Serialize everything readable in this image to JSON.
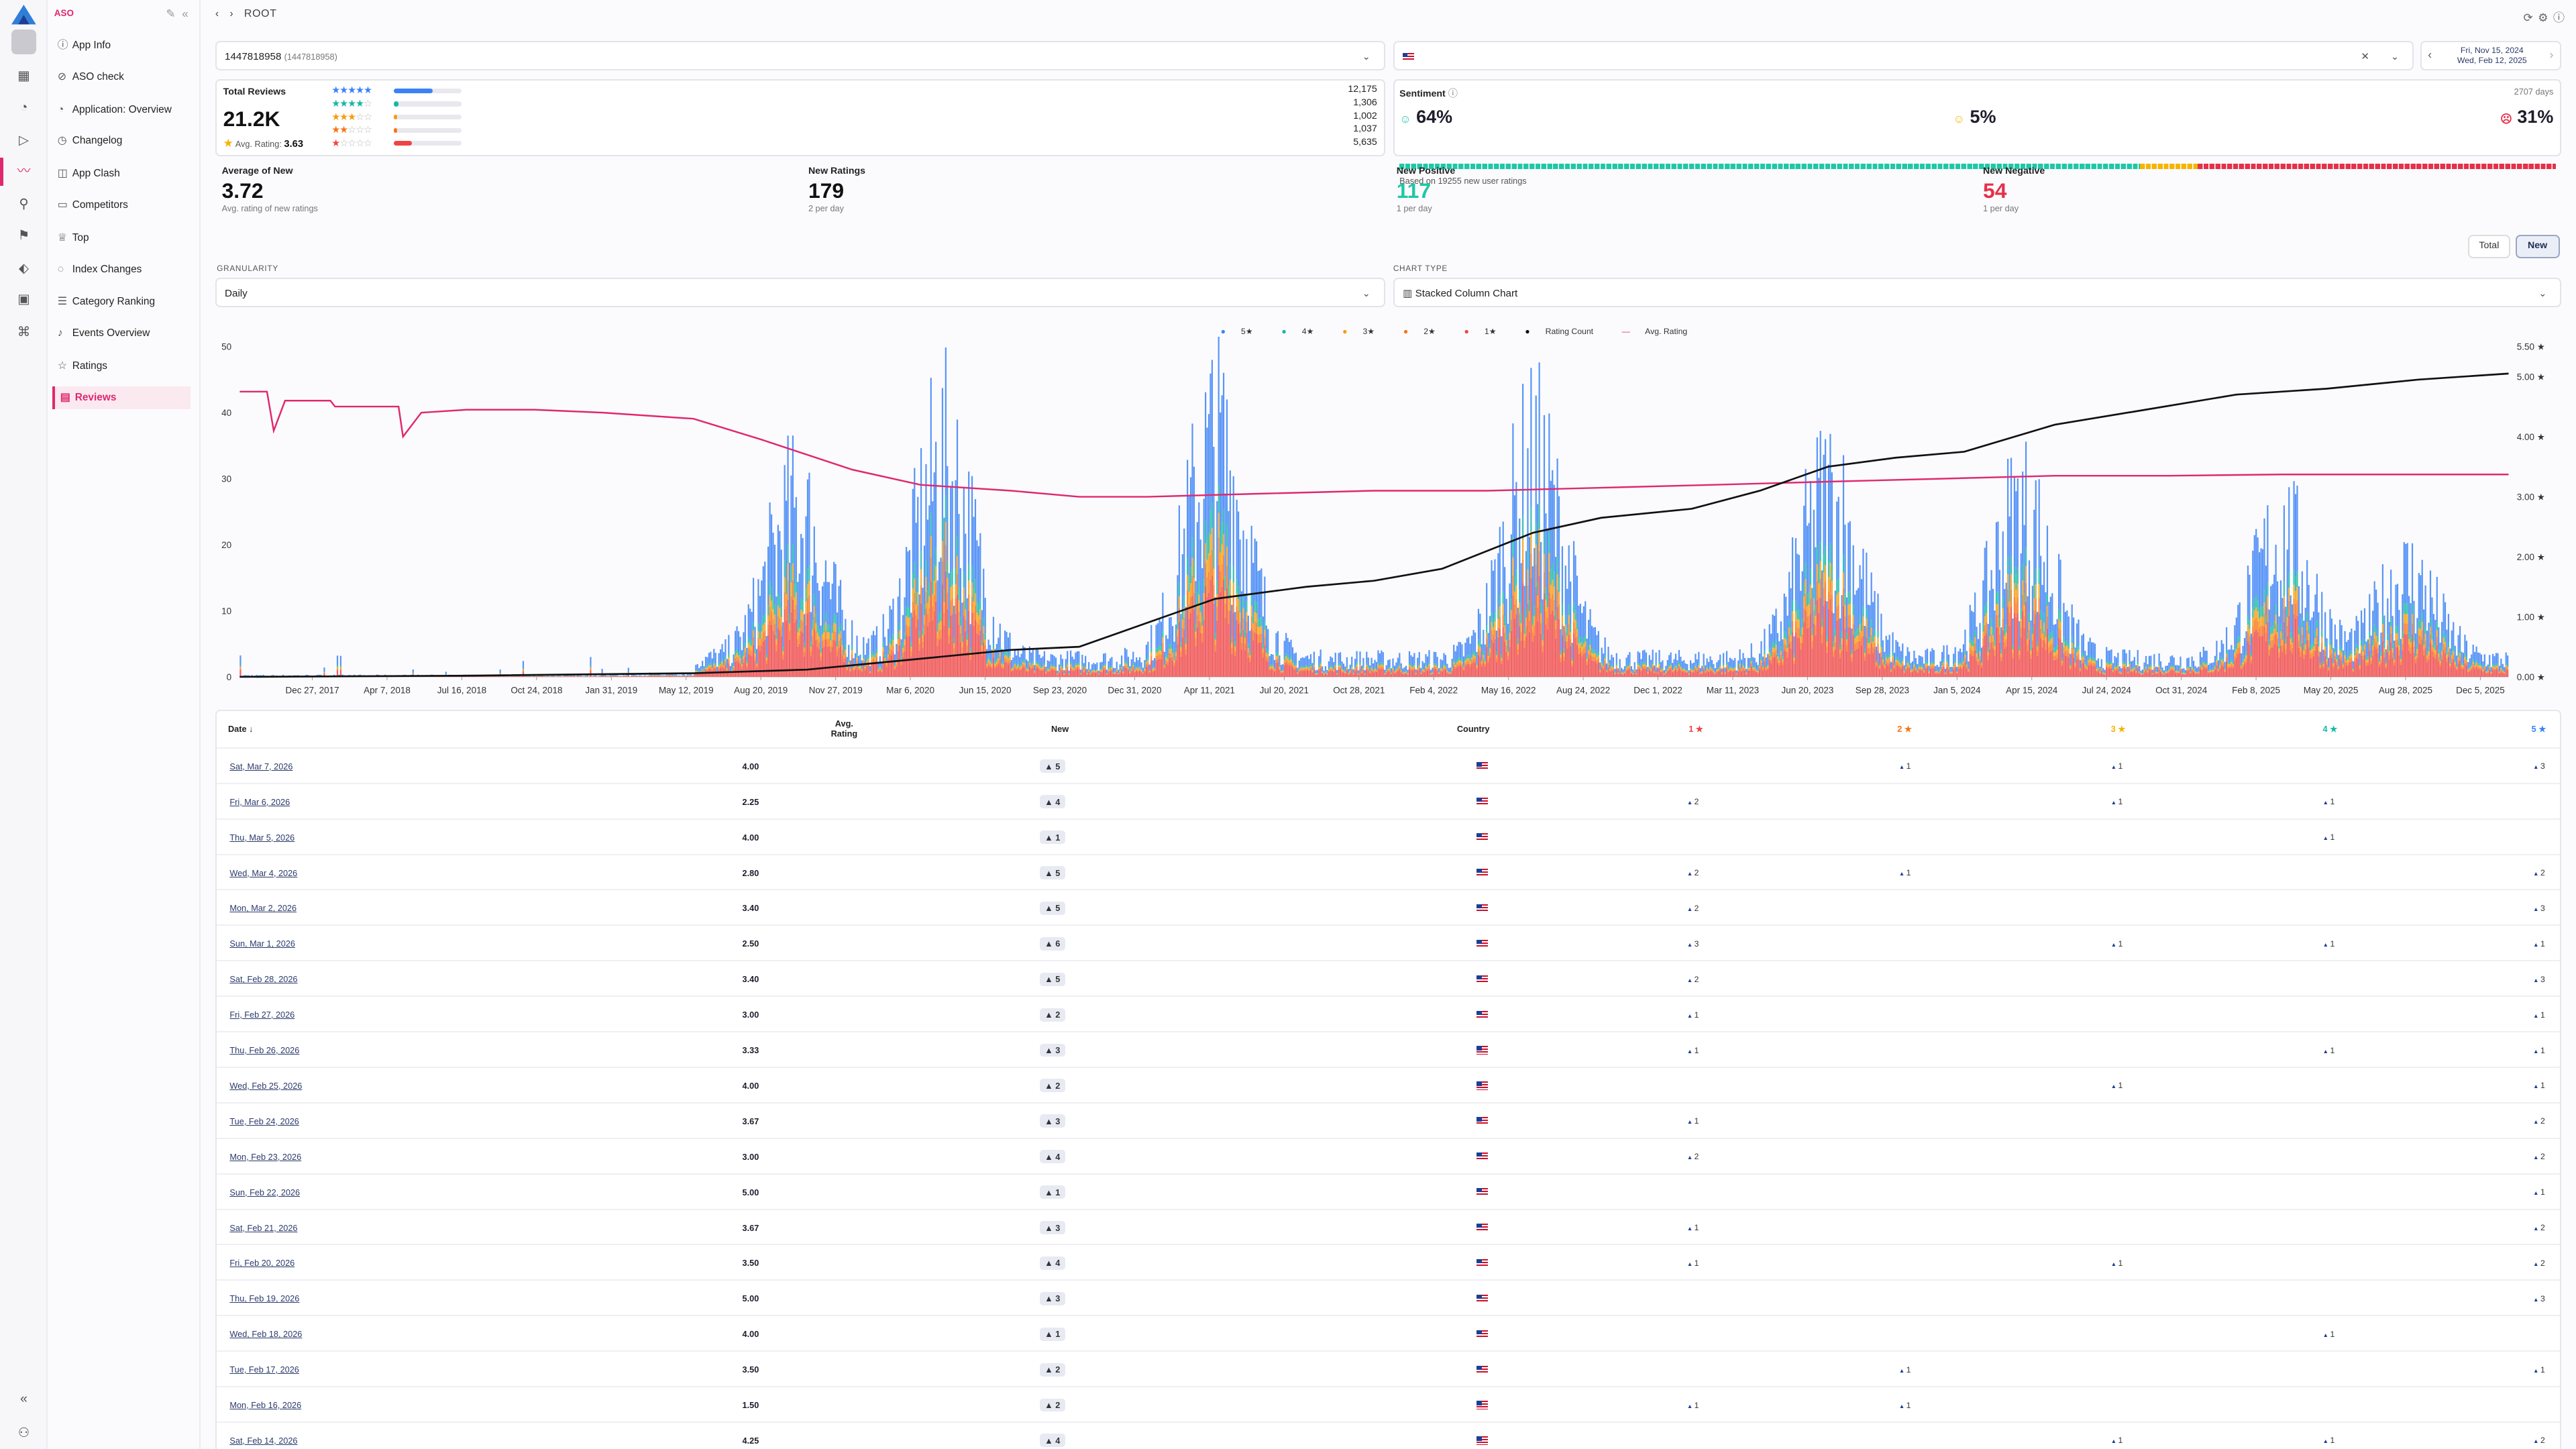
{
  "app": {
    "brand": "ASO",
    "breadcrumb": "ROOT"
  },
  "sidebar": {
    "items": [
      {
        "label": "App Info",
        "icon": "info-icon"
      },
      {
        "label": "ASO check",
        "icon": "check-circle-icon"
      },
      {
        "label": "Application: Overview",
        "icon": "overview-icon"
      },
      {
        "label": "Changelog",
        "icon": "history-icon"
      },
      {
        "label": "App Clash",
        "icon": "clash-icon"
      },
      {
        "label": "Competitors",
        "icon": "competitors-icon"
      },
      {
        "label": "Top",
        "icon": "trophy-icon"
      },
      {
        "label": "Index Changes",
        "icon": "index-icon"
      },
      {
        "label": "Category Ranking",
        "icon": "category-icon"
      },
      {
        "label": "Events Overview",
        "icon": "events-icon"
      },
      {
        "label": "Ratings",
        "icon": "star-icon"
      },
      {
        "label": "Reviews",
        "icon": "reviews-icon"
      }
    ],
    "active": "Reviews"
  },
  "filters": {
    "app_id": "1447818958",
    "app_id_sub": "(1447818958)",
    "date_from": "Fri, Nov 15, 2024",
    "date_to": "Wed, Feb 12, 2025"
  },
  "total_reviews": {
    "label": "Total Reviews",
    "value": "21.2K",
    "avg_label": "Avg. Rating:",
    "avg_value": "3.63",
    "counts": [
      "12,175",
      "1,306",
      "1,002",
      "1,037",
      "5,635"
    ],
    "fractions": [
      0.575,
      0.062,
      0.047,
      0.049,
      0.266
    ],
    "bar_colors": [
      "#3b82f6",
      "#14b8a6",
      "#f59e0b",
      "#f97316",
      "#ef4444"
    ]
  },
  "sentiment": {
    "label": "Sentiment",
    "days": "2707 days",
    "positive": "64%",
    "neutral": "5%",
    "negative": "31%",
    "based_on": "Based on 19255 new user ratings"
  },
  "metrics": [
    {
      "label": "Average of New",
      "value": "3.72",
      "sub": "Avg. rating of new ratings",
      "color": "#111111"
    },
    {
      "label": "New Ratings",
      "value": "179",
      "sub": "2 per day",
      "color": "#111111"
    },
    {
      "label": "New Positive",
      "value": "117",
      "sub": "1 per day",
      "color": "#1fc7a6"
    },
    {
      "label": "New Negative",
      "value": "54",
      "sub": "1 per day",
      "color": "#e5304a"
    }
  ],
  "toggle": {
    "total": "Total",
    "new": "New"
  },
  "controls": {
    "granularity_label": "GRANULARITY",
    "granularity": "Daily",
    "charttype_label": "CHART TYPE",
    "charttype": "Stacked Column Chart"
  },
  "legend": [
    "5★",
    "4★",
    "3★",
    "2★",
    "1★",
    "Rating Count",
    "Avg. Rating"
  ],
  "chart_data": {
    "type": "bar",
    "x_ticks": [
      "Dec 27, 2017",
      "Apr 7, 2018",
      "Jul 16, 2018",
      "Oct 24, 2018",
      "Jan 31, 2019",
      "May 12, 2019",
      "Aug 20, 2019",
      "Nov 27, 2019",
      "Mar 6, 2020",
      "Jun 15, 2020",
      "Sep 23, 2020",
      "Dec 31, 2020",
      "Apr 11, 2021",
      "Jul 20, 2021",
      "Oct 28, 2021",
      "Feb 4, 2022",
      "May 16, 2022",
      "Aug 24, 2022",
      "Dec 1, 2022",
      "Mar 11, 2023",
      "Jun 20, 2023",
      "Sep 28, 2023",
      "Jan 5, 2024",
      "Apr 15, 2024",
      "Jul 24, 2024",
      "Oct 31, 2024",
      "Feb 8, 2025",
      "May 20, 2025",
      "Aug 28, 2025",
      "Dec 5, 2025"
    ],
    "y_left_ticks": [
      "0",
      "10",
      "20",
      "30",
      "40",
      "50"
    ],
    "y_right_ticks": [
      "0.00 ★",
      "1.00 ★",
      "2.00 ★",
      "3.00 ★",
      "4.00 ★",
      "5.00 ★",
      "5.50 ★"
    ],
    "ylim_left": [
      0,
      50
    ],
    "ylim_right": [
      0,
      5.5
    ],
    "series": [
      {
        "name": "5★",
        "color": "#3b82f6"
      },
      {
        "name": "4★",
        "color": "#14b8a6"
      },
      {
        "name": "3★",
        "color": "#f59e0b"
      },
      {
        "name": "2★",
        "color": "#f97316"
      },
      {
        "name": "1★",
        "color": "#ef4444"
      }
    ],
    "avg_rating_line": {
      "name": "Avg. Rating",
      "color": "#e0286f",
      "points": [
        [
          0,
          4.75
        ],
        [
          0.012,
          4.75
        ],
        [
          0.015,
          4.1
        ],
        [
          0.02,
          4.6
        ],
        [
          0.04,
          4.6
        ],
        [
          0.042,
          4.5
        ],
        [
          0.07,
          4.5
        ],
        [
          0.072,
          4.0
        ],
        [
          0.08,
          4.4
        ],
        [
          0.1,
          4.45
        ],
        [
          0.13,
          4.45
        ],
        [
          0.16,
          4.4
        ],
        [
          0.2,
          4.3
        ],
        [
          0.23,
          3.95
        ],
        [
          0.27,
          3.45
        ],
        [
          0.3,
          3.2
        ],
        [
          0.34,
          3.1
        ],
        [
          0.37,
          3.0
        ],
        [
          0.4,
          3.0
        ],
        [
          0.45,
          3.05
        ],
        [
          0.5,
          3.1
        ],
        [
          0.55,
          3.1
        ],
        [
          0.6,
          3.15
        ],
        [
          0.65,
          3.2
        ],
        [
          0.7,
          3.25
        ],
        [
          0.75,
          3.3
        ],
        [
          0.8,
          3.35
        ],
        [
          0.85,
          3.35
        ],
        [
          0.9,
          3.37
        ],
        [
          0.95,
          3.37
        ],
        [
          1.0,
          3.37
        ]
      ]
    },
    "rating_count_line": {
      "name": "Rating Count",
      "color": "#111111",
      "points": [
        [
          0,
          0.0
        ],
        [
          0.1,
          0.02
        ],
        [
          0.2,
          0.06
        ],
        [
          0.25,
          0.12
        ],
        [
          0.3,
          0.3
        ],
        [
          0.34,
          0.45
        ],
        [
          0.37,
          0.5
        ],
        [
          0.4,
          0.9
        ],
        [
          0.43,
          1.3
        ],
        [
          0.47,
          1.5
        ],
        [
          0.5,
          1.6
        ],
        [
          0.53,
          1.8
        ],
        [
          0.57,
          2.4
        ],
        [
          0.6,
          2.65
        ],
        [
          0.64,
          2.8
        ],
        [
          0.67,
          3.1
        ],
        [
          0.7,
          3.5
        ],
        [
          0.73,
          3.65
        ],
        [
          0.76,
          3.75
        ],
        [
          0.8,
          4.2
        ],
        [
          0.84,
          4.45
        ],
        [
          0.88,
          4.7
        ],
        [
          0.92,
          4.8
        ],
        [
          0.96,
          4.95
        ],
        [
          1.0,
          5.05
        ]
      ]
    }
  },
  "table": {
    "headers": {
      "date": "Date ↓",
      "avg": "Avg. Rating",
      "new": "New",
      "country": "Country",
      "s1": "1 ★",
      "s2": "2 ★",
      "s3": "3 ★",
      "s4": "4 ★",
      "s5": "5 ★"
    },
    "rows": [
      {
        "date": "Sat, Mar 7, 2026",
        "avg": "4.00",
        "new": "▲ 5",
        "s1": "",
        "s2": "1",
        "s3": "1",
        "s4": "",
        "s5": "3"
      },
      {
        "date": "Fri, Mar 6, 2026",
        "avg": "2.25",
        "new": "▲ 4",
        "s1": "2",
        "s2": "",
        "s3": "1",
        "s4": "1",
        "s5": ""
      },
      {
        "date": "Thu, Mar 5, 2026",
        "avg": "4.00",
        "new": "▲ 1",
        "s1": "",
        "s2": "",
        "s3": "",
        "s4": "1",
        "s5": ""
      },
      {
        "date": "Wed, Mar 4, 2026",
        "avg": "2.80",
        "new": "▲ 5",
        "s1": "2",
        "s2": "1",
        "s3": "",
        "s4": "",
        "s5": "2"
      },
      {
        "date": "Mon, Mar 2, 2026",
        "avg": "3.40",
        "new": "▲ 5",
        "s1": "2",
        "s2": "",
        "s3": "",
        "s4": "",
        "s5": "3"
      },
      {
        "date": "Sun, Mar 1, 2026",
        "avg": "2.50",
        "new": "▲ 6",
        "s1": "3",
        "s2": "",
        "s3": "1",
        "s4": "1",
        "s5": "1"
      },
      {
        "date": "Sat, Feb 28, 2026",
        "avg": "3.40",
        "new": "▲ 5",
        "s1": "2",
        "s2": "",
        "s3": "",
        "s4": "",
        "s5": "3"
      },
      {
        "date": "Fri, Feb 27, 2026",
        "avg": "3.00",
        "new": "▲ 2",
        "s1": "1",
        "s2": "",
        "s3": "",
        "s4": "",
        "s5": "1"
      },
      {
        "date": "Thu, Feb 26, 2026",
        "avg": "3.33",
        "new": "▲ 3",
        "s1": "1",
        "s2": "",
        "s3": "",
        "s4": "1",
        "s5": "1"
      },
      {
        "date": "Wed, Feb 25, 2026",
        "avg": "4.00",
        "new": "▲ 2",
        "s1": "",
        "s2": "",
        "s3": "1",
        "s4": "",
        "s5": "1"
      },
      {
        "date": "Tue, Feb 24, 2026",
        "avg": "3.67",
        "new": "▲ 3",
        "s1": "1",
        "s2": "",
        "s3": "",
        "s4": "",
        "s5": "2"
      },
      {
        "date": "Mon, Feb 23, 2026",
        "avg": "3.00",
        "new": "▲ 4",
        "s1": "2",
        "s2": "",
        "s3": "",
        "s4": "",
        "s5": "2"
      },
      {
        "date": "Sun, Feb 22, 2026",
        "avg": "5.00",
        "new": "▲ 1",
        "s1": "",
        "s2": "",
        "s3": "",
        "s4": "",
        "s5": "1"
      },
      {
        "date": "Sat, Feb 21, 2026",
        "avg": "3.67",
        "new": "▲ 3",
        "s1": "1",
        "s2": "",
        "s3": "",
        "s4": "",
        "s5": "2"
      },
      {
        "date": "Fri, Feb 20, 2026",
        "avg": "3.50",
        "new": "▲ 4",
        "s1": "1",
        "s2": "",
        "s3": "1",
        "s4": "",
        "s5": "2"
      },
      {
        "date": "Thu, Feb 19, 2026",
        "avg": "5.00",
        "new": "▲ 3",
        "s1": "",
        "s2": "",
        "s3": "",
        "s4": "",
        "s5": "3"
      },
      {
        "date": "Wed, Feb 18, 2026",
        "avg": "4.00",
        "new": "▲ 1",
        "s1": "",
        "s2": "",
        "s3": "",
        "s4": "1",
        "s5": ""
      },
      {
        "date": "Tue, Feb 17, 2026",
        "avg": "3.50",
        "new": "▲ 2",
        "s1": "",
        "s2": "1",
        "s3": "",
        "s4": "",
        "s5": "1"
      },
      {
        "date": "Mon, Feb 16, 2026",
        "avg": "1.50",
        "new": "▲ 2",
        "s1": "1",
        "s2": "1",
        "s3": "",
        "s4": "",
        "s5": ""
      },
      {
        "date": "Sat, Feb 14, 2026",
        "avg": "4.25",
        "new": "▲ 4",
        "s1": "",
        "s2": "",
        "s3": "1",
        "s4": "1",
        "s5": "2"
      }
    ]
  }
}
